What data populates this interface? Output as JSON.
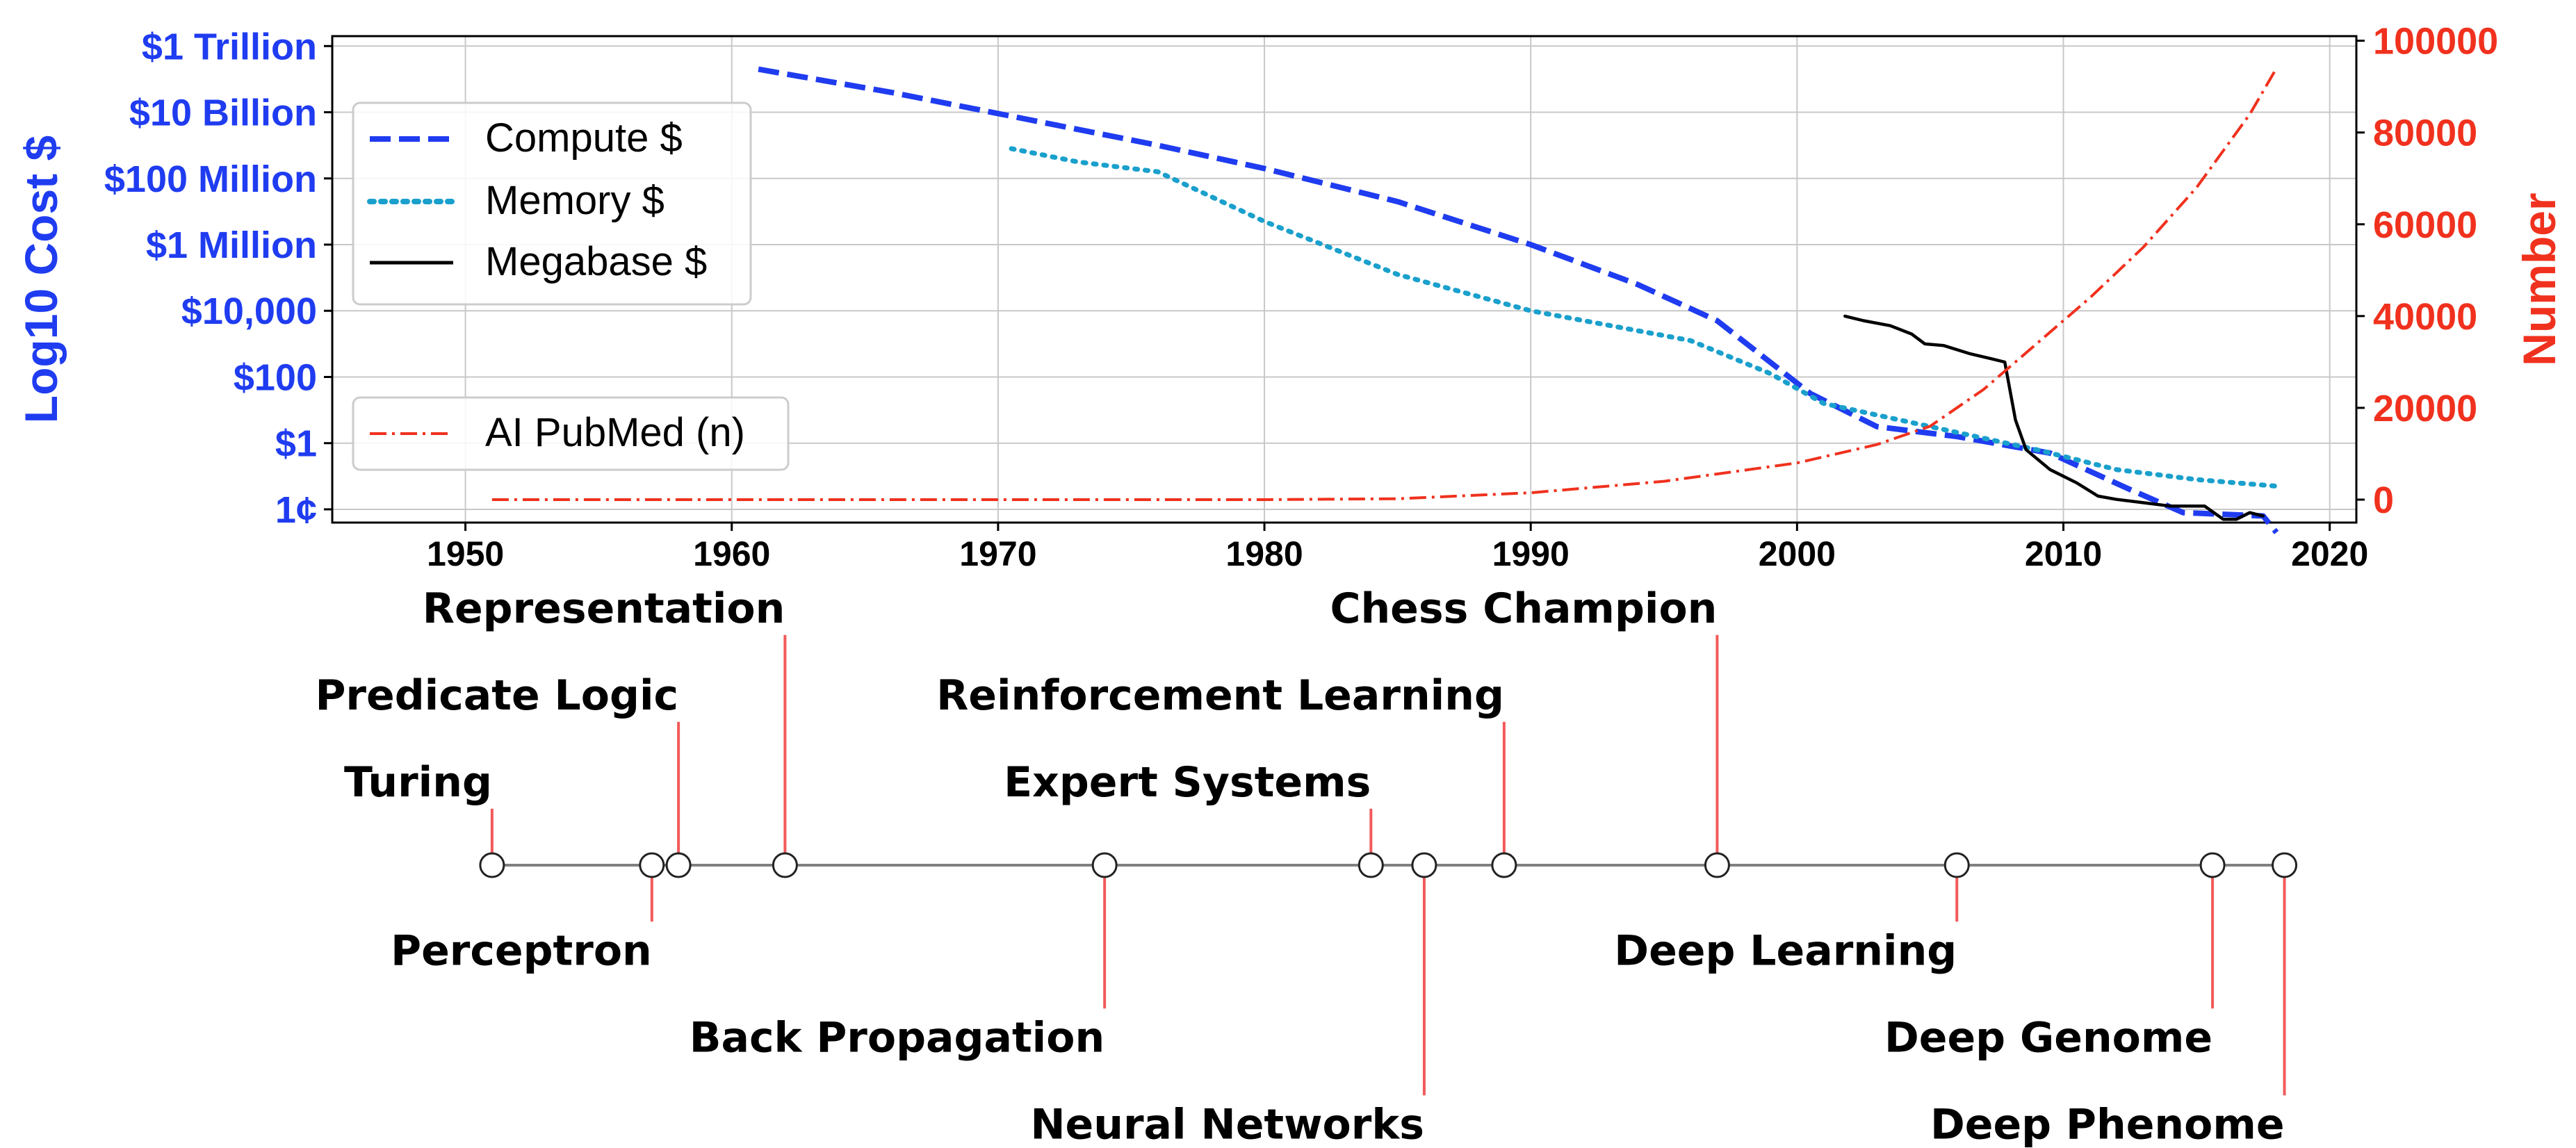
{
  "colors": {
    "compute": "#1f3cf0",
    "memory": "#1aa0cc",
    "megabase": "#000000",
    "pubmed": "#f0311e",
    "left_axis": "#1f3cf0",
    "right_axis": "#f0311e",
    "grid": "#c8c8c8",
    "stem": "#f25a5a",
    "timeline": "#808080"
  },
  "chart_data": [
    {
      "type": "line",
      "title": "",
      "xlabel": "",
      "ylabel": "Log10 Cost $",
      "y2label": "Number",
      "xlim": [
        1945,
        2021
      ],
      "xticks": [
        1950,
        1960,
        1970,
        1980,
        1990,
        2000,
        2010,
        2020
      ],
      "xtick_labels": [
        "1950",
        "1960",
        "1970",
        "1980",
        "1990",
        "2000",
        "2010",
        "2020"
      ],
      "ylim_log10": [
        -2.4,
        12.3
      ],
      "yticks_log10": [
        -2,
        0,
        2,
        4,
        6,
        8,
        10,
        12
      ],
      "ytick_labels": [
        "1¢",
        "$1",
        "$100",
        "$10,000",
        "$1 Million",
        "$100 Million",
        "$10 Billion",
        "$1 Trillion"
      ],
      "y2lim": [
        -5000,
        101000
      ],
      "y2ticks": [
        0,
        20000,
        40000,
        60000,
        80000,
        100000
      ],
      "y2tick_labels": [
        "0",
        "20000",
        "40000",
        "60000",
        "80000",
        "100000"
      ],
      "grid": true,
      "legend_placement": "top-left",
      "legend2_placement": "center-left",
      "series": [
        {
          "name": "Compute $",
          "axis": "left",
          "style": "dashed",
          "x": [
            1961,
            1966,
            1971,
            1976,
            1980,
            1985,
            1990,
            1994,
            1997,
            2000.5,
            2003,
            2006,
            2009.5,
            2012.5,
            2014.5,
            2017.5,
            2018
          ],
          "y_log10": [
            11.3,
            10.6,
            9.8,
            9.0,
            8.3,
            7.3,
            6.0,
            4.8,
            3.7,
            1.5,
            0.5,
            0.2,
            -0.3,
            -1.4,
            -2.1,
            -2.2,
            -2.7
          ]
        },
        {
          "name": "Memory $",
          "axis": "left",
          "style": "dotted",
          "x": [
            1970.5,
            1973,
            1976,
            1980,
            1985,
            1990,
            1996,
            1999,
            2001,
            2005,
            2009,
            2012,
            2015,
            2018
          ],
          "y_log10": [
            8.9,
            8.5,
            8.2,
            6.7,
            5.1,
            4.0,
            3.1,
            2.1,
            1.2,
            0.5,
            -0.2,
            -0.8,
            -1.1,
            -1.3
          ]
        },
        {
          "name": "Megabase $",
          "axis": "left",
          "style": "solid",
          "x": [
            2001.8,
            2002.5,
            2003.5,
            2004.3,
            2004.8,
            2005.5,
            2006.5,
            2007.3,
            2007.8,
            2008.2,
            2008.6,
            2009.5,
            2010.5,
            2011.3,
            2012,
            2013,
            2014,
            2014.8,
            2015.3,
            2016,
            2016.5,
            2017,
            2017.5
          ],
          "y_log10": [
            3.84,
            3.7,
            3.55,
            3.3,
            3.0,
            2.95,
            2.7,
            2.55,
            2.45,
            0.7,
            -0.2,
            -0.8,
            -1.2,
            -1.6,
            -1.7,
            -1.8,
            -1.9,
            -1.9,
            -1.9,
            -2.3,
            -2.3,
            -2.1,
            -2.2
          ]
        },
        {
          "name": "AI PubMed (n)",
          "axis": "right",
          "style": "dashdot",
          "x": [
            1951,
            1960,
            1970,
            1980,
            1985,
            1990,
            1995,
            2000,
            2003,
            2005,
            2007,
            2009,
            2011,
            2013,
            2015,
            2017,
            2018
          ],
          "y": [
            0,
            0,
            0,
            0,
            200,
            1500,
            4000,
            8000,
            12000,
            16000,
            24000,
            34000,
            44000,
            55000,
            68000,
            84000,
            94000
          ]
        }
      ]
    },
    {
      "type": "timeline",
      "xlim": [
        1945,
        2021
      ],
      "events": [
        {
          "label": "Turing",
          "year": 1951,
          "side": "above",
          "stem": 0.65
        },
        {
          "label": "Perceptron",
          "year": 1957,
          "side": "below",
          "stem": 0.65
        },
        {
          "label": "Predicate Logic",
          "year": 1958,
          "side": "above",
          "stem": 1.65
        },
        {
          "label": "Representation",
          "year": 1962,
          "side": "above",
          "stem": 2.65
        },
        {
          "label": "Back Propagation",
          "year": 1974,
          "side": "below",
          "stem": 1.65
        },
        {
          "label": "Expert Systems",
          "year": 1984,
          "side": "above",
          "stem": 0.65
        },
        {
          "label": "Neural Networks",
          "year": 1986,
          "side": "below",
          "stem": 2.65
        },
        {
          "label": "Reinforcement Learning",
          "year": 1989,
          "side": "above",
          "stem": 1.65
        },
        {
          "label": "Chess Champion",
          "year": 1997,
          "side": "above",
          "stem": 2.65
        },
        {
          "label": "Deep Learning",
          "year": 2006,
          "side": "below",
          "stem": 0.65
        },
        {
          "label": "Deep Genome",
          "year": 2015.6,
          "side": "below",
          "stem": 1.65
        },
        {
          "label": "Deep Phenome",
          "year": 2018.3,
          "side": "below",
          "stem": 2.65
        }
      ]
    }
  ]
}
